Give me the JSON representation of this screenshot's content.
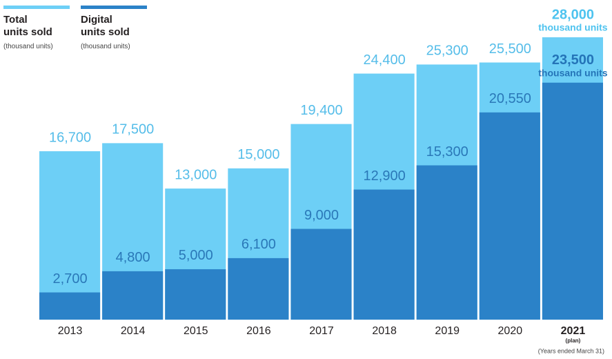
{
  "chart_data": {
    "type": "overlap_bar",
    "categories": [
      "2013",
      "2014",
      "2015",
      "2016",
      "2017",
      "2018",
      "2019",
      "2020",
      "2021"
    ],
    "series": [
      {
        "name": "Total units sold",
        "unit_label": "(thousand units)",
        "color": "#6dcff6",
        "label_color": "#55bde9",
        "values": [
          16700,
          17500,
          13000,
          15000,
          19400,
          24400,
          25300,
          25500,
          28000
        ],
        "value_labels": [
          "16,700",
          "17,500",
          "13,000",
          "15,000",
          "19,400",
          "24,400",
          "25,300",
          "25,500",
          "28,000"
        ]
      },
      {
        "name": "Digital units sold",
        "unit_label": "(thousand units)",
        "color": "#2b82c8",
        "label_color": "#2a78b8",
        "values": [
          2700,
          4800,
          5000,
          6100,
          9000,
          12900,
          15300,
          20550,
          23500
        ],
        "value_labels": [
          "2,700",
          "4,800",
          "5,000",
          "6,100",
          "9,000",
          "12,900",
          "15,300",
          "20,550",
          "23,500"
        ]
      }
    ],
    "ylim": [
      0,
      28000
    ],
    "annotations": {
      "plan": "(plan)",
      "unit": "thousand units",
      "note": "(Years ended March 31)"
    }
  }
}
